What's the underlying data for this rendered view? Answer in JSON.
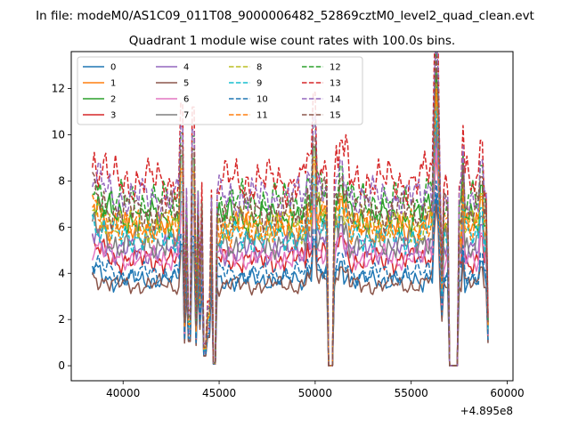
{
  "chart_data": {
    "type": "line",
    "suptitle": "In file: modeM0/AS1C09_011T08_9000006482_52869cztM0_level2_quad_clean.evt",
    "title": "Quadrant 1 module wise count rates with 100.0s bins.",
    "xlabel": "",
    "ylabel": "",
    "offset_text": "+4.895e8",
    "xlim": [
      37300,
      60300
    ],
    "ylim": [
      -0.65,
      13.6
    ],
    "x_ticks": [
      40000,
      45000,
      50000,
      55000,
      60000
    ],
    "x_tick_labels": [
      "40000",
      "45000",
      "50000",
      "55000",
      "60000"
    ],
    "y_ticks": [
      0,
      2,
      4,
      6,
      8,
      10,
      12
    ],
    "y_tick_labels": [
      "0",
      "2",
      "4",
      "6",
      "8",
      "10",
      "12"
    ],
    "x_range": [
      38400,
      59000
    ],
    "bin_width": 100,
    "legend_position": "upper-left",
    "legend_columns": 4,
    "series": [
      {
        "name": "0",
        "color": "#1f77b4",
        "dash": "solid",
        "base": 3.7
      },
      {
        "name": "1",
        "color": "#ff7f0e",
        "dash": "solid",
        "base": 5.9
      },
      {
        "name": "2",
        "color": "#2ca02c",
        "dash": "solid",
        "base": 6.4
      },
      {
        "name": "3",
        "color": "#d62728",
        "dash": "solid",
        "base": 4.6
      },
      {
        "name": "4",
        "color": "#9467bd",
        "dash": "solid",
        "base": 5.0
      },
      {
        "name": "5",
        "color": "#8c564b",
        "dash": "solid",
        "base": 3.5
      },
      {
        "name": "6",
        "color": "#e377c2",
        "dash": "solid",
        "base": 4.7
      },
      {
        "name": "7",
        "color": "#7f7f7f",
        "dash": "solid",
        "base": 5.3
      },
      {
        "name": "8",
        "color": "#bcbd22",
        "dash": "dashed",
        "base": 6.1
      },
      {
        "name": "9",
        "color": "#17becf",
        "dash": "dashed",
        "base": 5.6
      },
      {
        "name": "10",
        "color": "#1f77b4",
        "dash": "dashed",
        "base": 4.0
      },
      {
        "name": "11",
        "color": "#ff7f0e",
        "dash": "dashed",
        "base": 6.0
      },
      {
        "name": "12",
        "color": "#2ca02c",
        "dash": "dashed",
        "base": 7.1
      },
      {
        "name": "13",
        "color": "#d62728",
        "dash": "dashed",
        "base": 8.0
      },
      {
        "name": "14",
        "color": "#9467bd",
        "dash": "dashed",
        "base": 7.3
      },
      {
        "name": "15",
        "color": "#8c564b",
        "dash": "dashed",
        "base": 6.7
      }
    ]
  }
}
